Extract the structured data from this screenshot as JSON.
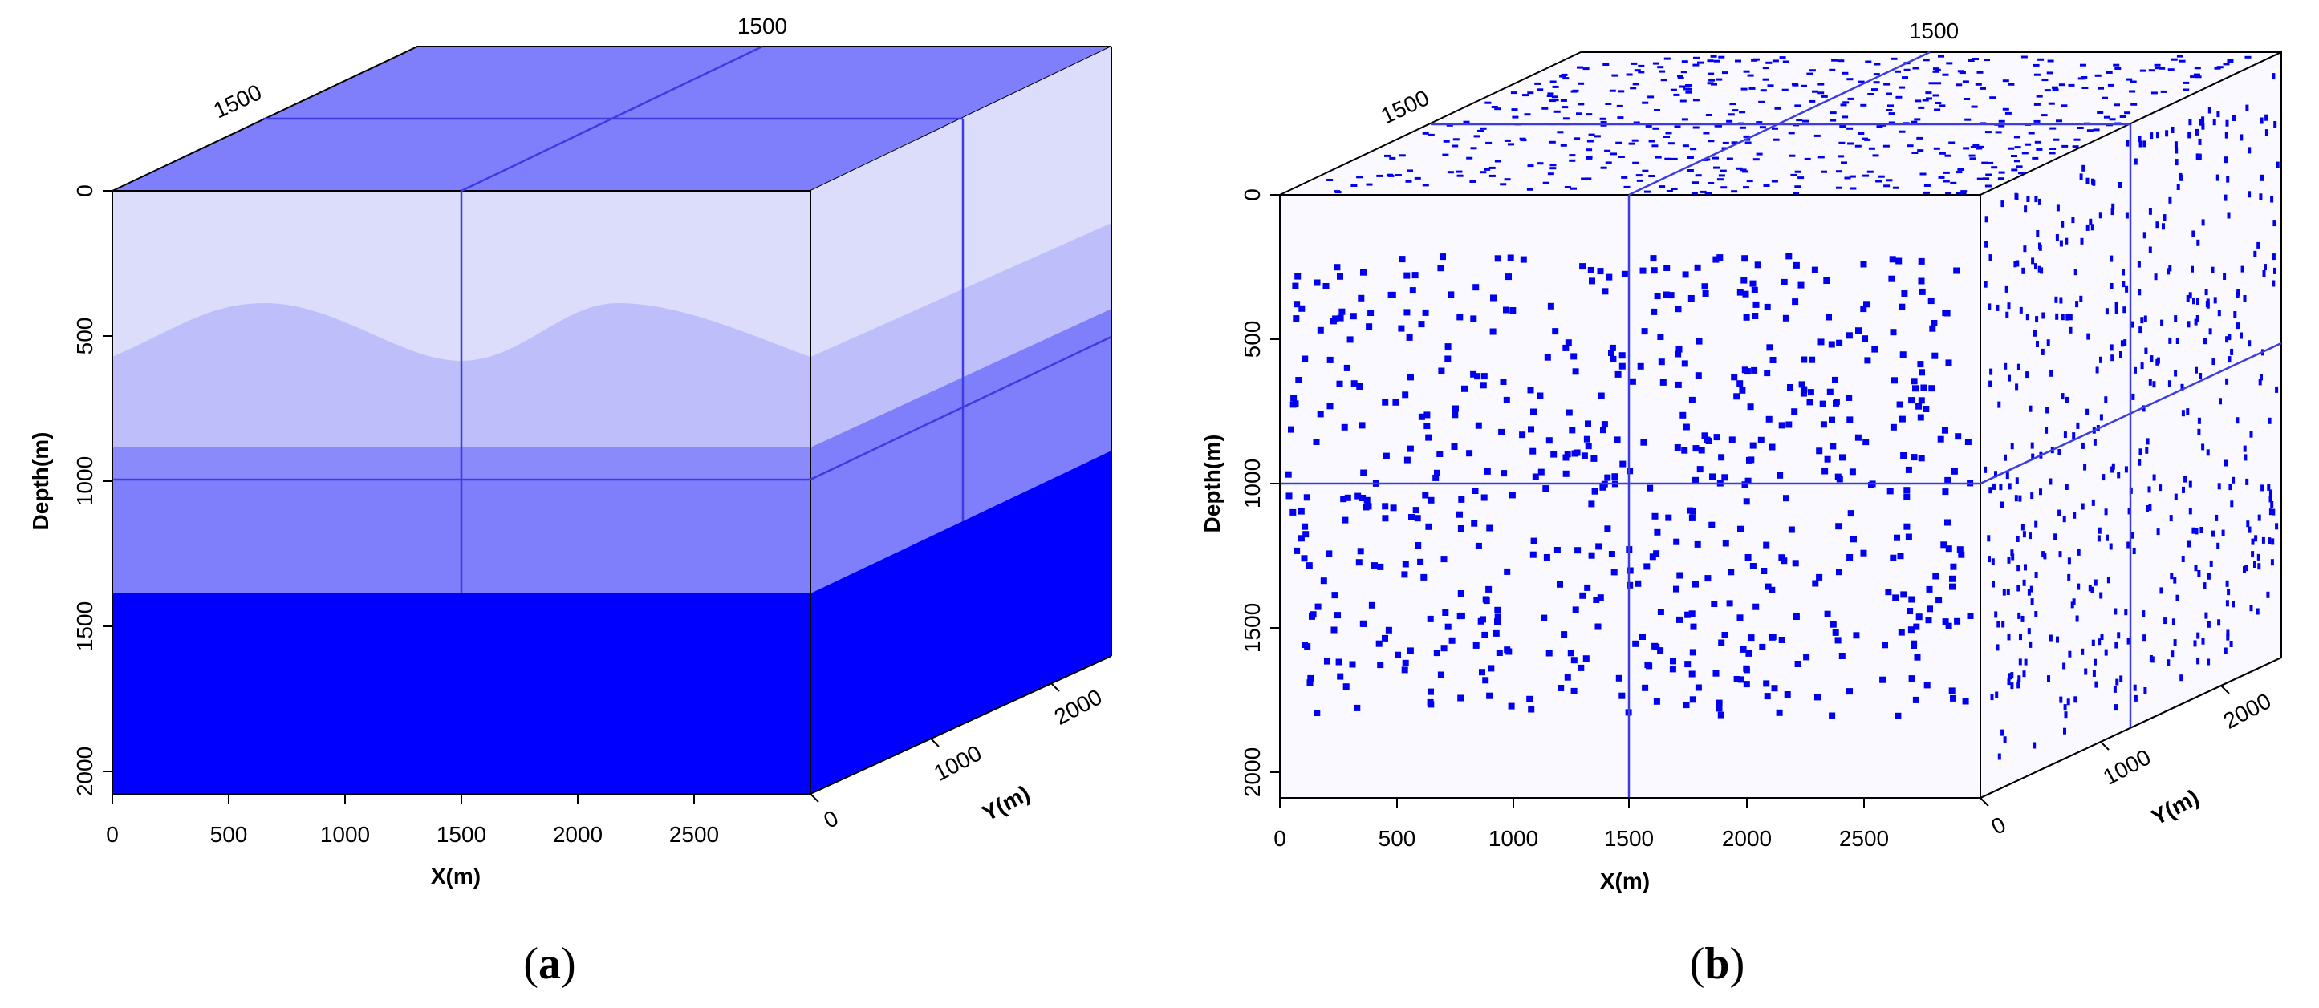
{
  "panel_a": {
    "caption_open": "(",
    "caption_letter": "a",
    "caption_close": ")",
    "x_axis": {
      "title": "X(m)",
      "ticks": [
        "0",
        "500",
        "1000",
        "1500",
        "2000",
        "2500"
      ]
    },
    "y_axis": {
      "title": "Y(m)",
      "ticks": [
        "0",
        "1000",
        "2000"
      ]
    },
    "depth_axis": {
      "title": "Depth(m)",
      "ticks": [
        "0",
        "500",
        "1000",
        "1500",
        "2000"
      ]
    },
    "top_labels": [
      "1500",
      "1500"
    ],
    "layer_colors": [
      "#dcdcfb",
      "#bebefb",
      "#7f7ffb",
      "#0000ff"
    ],
    "top_color": "#7f7ffb",
    "line_color": "#3c3ce0"
  },
  "panel_b": {
    "caption_open": "(",
    "caption_letter": "b",
    "caption_close": ")",
    "x_axis": {
      "title": "X(m)",
      "ticks": [
        "0",
        "500",
        "1000",
        "1500",
        "2000",
        "2500"
      ]
    },
    "y_axis": {
      "title": "Y(m)",
      "ticks": [
        "0",
        "1000",
        "2000"
      ]
    },
    "depth_axis": {
      "title": "Depth(m)",
      "ticks": [
        "0",
        "500",
        "1000",
        "1500",
        "2000"
      ]
    },
    "top_labels": [
      "1500",
      "1500"
    ],
    "point_color": "#0000ee",
    "background": "#f9f9ff",
    "line_color": "#3c3ce0"
  }
}
